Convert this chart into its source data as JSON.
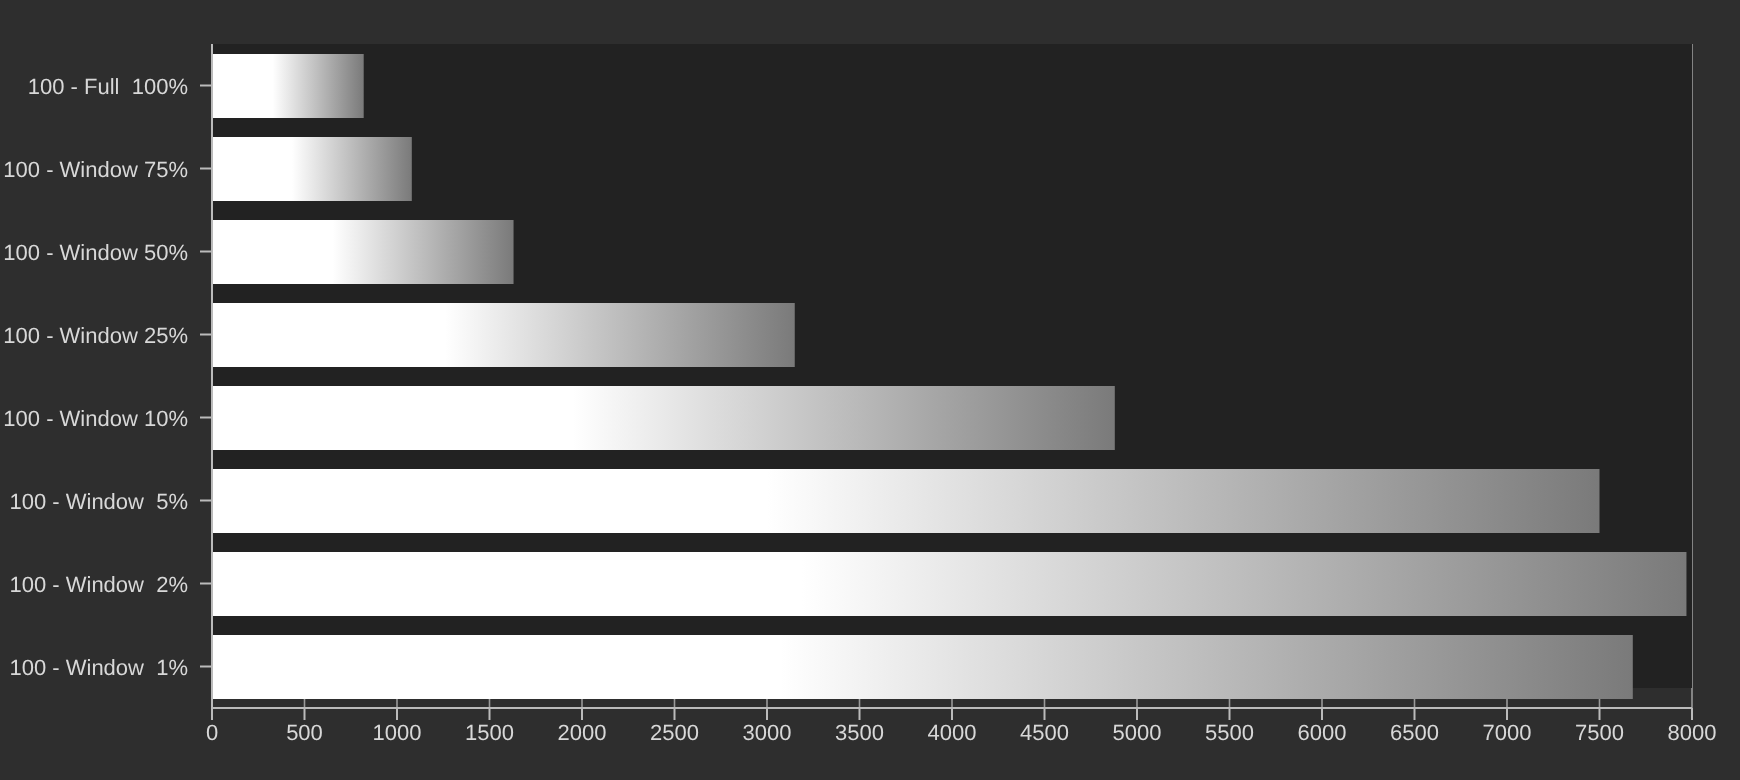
{
  "chart_data": {
    "type": "bar",
    "orientation": "horizontal",
    "categories": [
      "100 - Full  100%",
      "100 - Window 75%",
      "100 - Window 50%",
      "100 - Window 25%",
      "100 - Window 10%",
      "100 - Window  5%",
      "100 - Window  2%",
      "100 - Window  1%"
    ],
    "values": [
      820,
      1080,
      1630,
      3150,
      4880,
      7500,
      7970,
      7680
    ],
    "color": "#ffffff",
    "xlim": [
      0,
      8000
    ],
    "xticks": [
      0,
      500,
      1000,
      1500,
      2000,
      2500,
      3000,
      3500,
      4000,
      4500,
      5000,
      5500,
      6000,
      6500,
      7000,
      7500,
      8000
    ],
    "grid": "x"
  }
}
